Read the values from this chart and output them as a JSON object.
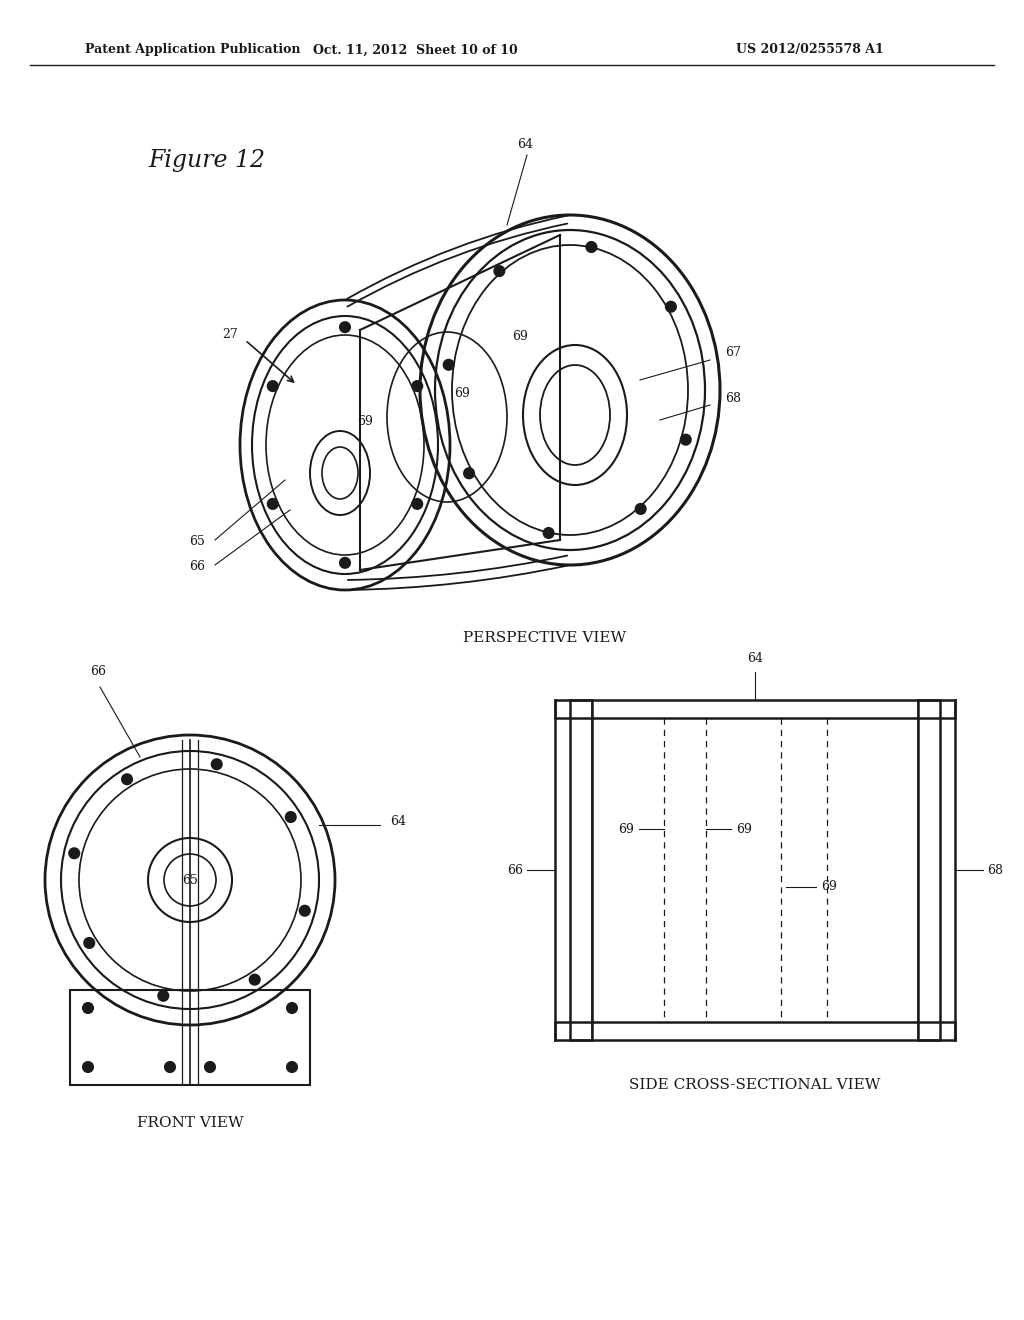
{
  "bg_color": "#ffffff",
  "header_left": "Patent Application Publication",
  "header_mid": "Oct. 11, 2012  Sheet 10 of 10",
  "header_right": "US 2012/0255578 A1",
  "figure_title": "Figure 12",
  "view1_label": "PERSPECTIVE VIEW",
  "view2_label": "FRONT VIEW",
  "view3_label": "SIDE CROSS-SECTIONAL VIEW",
  "line_color": "#1a1a1a",
  "dashed_color": "#555555"
}
